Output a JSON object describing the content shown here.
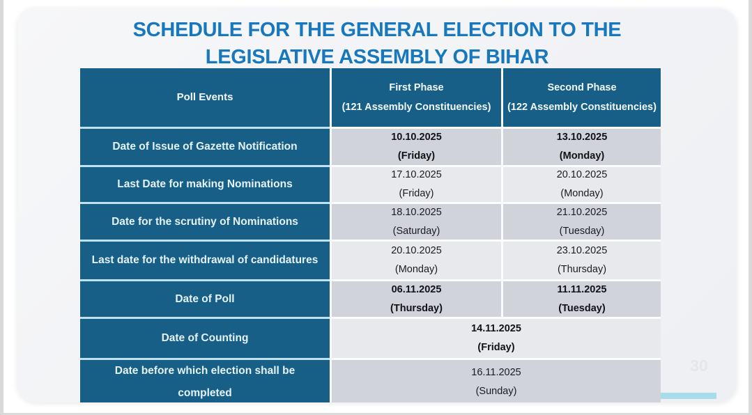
{
  "title": {
    "line1": "SCHEDULE FOR THE GENERAL ELECTION TO THE",
    "line2": "LEGISLATIVE ASSEMBLY OF BIHAR"
  },
  "page_number": "30",
  "table": {
    "header": {
      "poll_events": "Poll Events",
      "first_phase_title": "First Phase",
      "first_phase_sub": "(121 Assembly Constituencies)",
      "second_phase_title": "Second Phase",
      "second_phase_sub": "(122 Assembly Constituencies)"
    },
    "rows": [
      {
        "event": "Date of Issue of Gazette Notification",
        "first_date": "10.10.2025",
        "first_day": "(Friday)",
        "second_date": "13.10.2025",
        "second_day": "(Monday)"
      },
      {
        "event": "Last Date for making Nominations",
        "first_date": "17.10.2025",
        "first_day": "(Friday)",
        "second_date": "20.10.2025",
        "second_day": "(Monday)"
      },
      {
        "event": "Date for the scrutiny of Nominations",
        "first_date": "18.10.2025",
        "first_day": "(Saturday)",
        "second_date": "21.10.2025",
        "second_day": "(Tuesday)"
      },
      {
        "event": "Last date for the withdrawal of candidatures",
        "first_date": "20.10.2025",
        "first_day": "(Monday)",
        "second_date": "23.10.2025",
        "second_day": "(Thursday)"
      },
      {
        "event": "Date of Poll",
        "first_date": "06.11.2025",
        "first_day": "(Thursday)",
        "second_date": "11.11.2025",
        "second_day": "(Tuesday)"
      },
      {
        "event": "Date of Counting",
        "merged_date": "14.11.2025",
        "merged_day": "(Friday)"
      },
      {
        "event": "Date before which election shall be completed",
        "merged_date": "16.11.2025",
        "merged_day": "(Sunday)"
      }
    ]
  },
  "colors": {
    "header_teal": "#175f86",
    "title_blue": "#1778be",
    "row_dark": "#d1d3da",
    "row_light": "#e7e9ed",
    "accent_cyan": "#a9dcea"
  }
}
